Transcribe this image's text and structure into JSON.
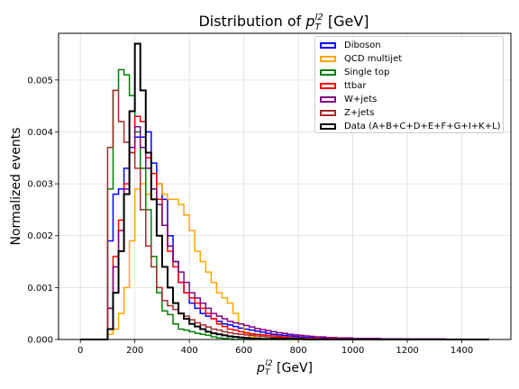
{
  "chart_data": {
    "type": "step-histogram",
    "title": "Distribution of p_T^l2 [GeV]",
    "title_parts": {
      "prefix": "Distribution of ",
      "var": "p",
      "sub": "T",
      "sup": "l2",
      "suffix": " [GeV]"
    },
    "xlabel": "p_T^l2 [GeV]",
    "xlabel_parts": {
      "var": "p",
      "sub": "T",
      "sup": "l2",
      "suffix": " [GeV]"
    },
    "ylabel": "Normalized events",
    "xlim": [
      -80,
      1580
    ],
    "ylim": [
      0,
      0.0059
    ],
    "x_ticks": [
      0,
      200,
      400,
      600,
      800,
      1000,
      1200,
      1400
    ],
    "x_tick_labels": [
      "0",
      "200",
      "400",
      "600",
      "800",
      "1000",
      "1200",
      "1400"
    ],
    "y_ticks": [
      0,
      0.001,
      0.002,
      0.003,
      0.004,
      0.005
    ],
    "y_tick_labels": [
      "0.000",
      "0.001",
      "0.002",
      "0.003",
      "0.004",
      "0.005"
    ],
    "grid": true,
    "legend_position": "top-right",
    "bin_edges": [
      0,
      20,
      40,
      60,
      80,
      100,
      120,
      140,
      160,
      180,
      200,
      220,
      240,
      260,
      280,
      300,
      320,
      340,
      360,
      380,
      400,
      420,
      440,
      460,
      480,
      500,
      520,
      540,
      560,
      580,
      600,
      620,
      640,
      660,
      680,
      700,
      720,
      740,
      760,
      780,
      800,
      820,
      840,
      860,
      880,
      900,
      920,
      940,
      960,
      980,
      1000,
      1020,
      1040,
      1060,
      1080,
      1100,
      1120,
      1140,
      1160,
      1180,
      1200,
      1220,
      1240,
      1260,
      1280,
      1300,
      1320,
      1340,
      1360,
      1380,
      1400,
      1420,
      1440,
      1460,
      1480,
      1500
    ],
    "series": [
      {
        "name": "Diboson",
        "color": "#0000ff",
        "values": [
          0,
          0,
          0,
          0,
          0,
          0.0019,
          0.0028,
          0.0029,
          0.0033,
          0.0037,
          0.0039,
          0.0039,
          0.004,
          0.0034,
          0.003,
          0.0027,
          0.002,
          0.0015,
          0.0011,
          0.0009,
          0.0007,
          0.0006,
          0.0005,
          0.00045,
          0.0004,
          0.00035,
          0.0003,
          0.00028,
          0.00025,
          0.00022,
          0.0002,
          0.00018,
          0.00016,
          0.00014,
          0.00012,
          0.0001,
          9e-05,
          8e-05,
          7e-05,
          6e-05,
          5e-05,
          4e-05,
          4e-05,
          3e-05,
          3e-05,
          2e-05,
          2e-05,
          2e-05,
          2e-05,
          1e-05,
          1e-05,
          1e-05,
          1e-05,
          1e-05,
          1e-05,
          1e-05,
          1e-05,
          1e-05,
          1e-05,
          0,
          0,
          0,
          0,
          0,
          0,
          0,
          0,
          0,
          0,
          0,
          0,
          0,
          0,
          0,
          0
        ]
      },
      {
        "name": "QCD multijet",
        "color": "#ffa500",
        "values": [
          0,
          0,
          0,
          0,
          0,
          0.0001,
          0.0002,
          0.0005,
          0.001,
          0.0019,
          0.0029,
          0.003,
          0.0028,
          0.0029,
          0.003,
          0.0028,
          0.0027,
          0.0027,
          0.0026,
          0.0024,
          0.0021,
          0.0017,
          0.0015,
          0.0013,
          0.0011,
          0.0009,
          0.0008,
          0.0007,
          0.0005,
          0.0003,
          0.0001,
          5e-05,
          3e-05,
          2e-05,
          1e-05,
          0,
          0,
          0,
          0,
          0,
          0,
          0,
          0,
          0,
          0,
          0,
          0,
          0,
          0,
          0,
          0,
          0,
          0,
          0,
          0,
          0,
          0,
          0,
          0,
          0,
          0,
          0,
          0,
          0,
          0,
          0,
          0,
          0,
          0,
          0,
          0,
          0,
          0,
          0,
          0
        ]
      },
      {
        "name": "Single top",
        "color": "#008000",
        "values": [
          0,
          0,
          0,
          0,
          0,
          0.0029,
          0.0048,
          0.0052,
          0.0051,
          0.0047,
          0.004,
          0.0033,
          0.0025,
          0.0016,
          0.0009,
          0.00055,
          0.00048,
          0.0003,
          0.0002,
          0.00018,
          0.00015,
          0.00012,
          0.0001,
          8e-05,
          5e-05,
          3e-05,
          2e-05,
          1e-05,
          0,
          0,
          0,
          0,
          0,
          0,
          0,
          0,
          0,
          0,
          0,
          0,
          0,
          0,
          0,
          0,
          0,
          0,
          0,
          0,
          0,
          0,
          0,
          0,
          0,
          0,
          0,
          0,
          0,
          0,
          0,
          0,
          0,
          0,
          0,
          0,
          0,
          0,
          0,
          0,
          0,
          0,
          0,
          0,
          0,
          0,
          0
        ]
      },
      {
        "name": "ttbar",
        "color": "#ff0000",
        "values": [
          0,
          0,
          0,
          0,
          0,
          0.0006,
          0.0016,
          0.0023,
          0.003,
          0.0036,
          0.0043,
          0.0042,
          0.0035,
          0.0032,
          0.0027,
          0.0022,
          0.0017,
          0.0014,
          0.0011,
          0.0009,
          0.0008,
          0.0007,
          0.0006,
          0.0005,
          0.0004,
          0.0003,
          0.00025,
          0.0002,
          0.00018,
          0.00015,
          0.00013,
          0.00011,
          0.0001,
          9e-05,
          8e-05,
          7e-05,
          6e-05,
          5e-05,
          4e-05,
          3e-05,
          3e-05,
          2e-05,
          2e-05,
          2e-05,
          1e-05,
          1e-05,
          1e-05,
          1e-05,
          1e-05,
          1e-05,
          1e-05,
          0,
          0,
          0,
          0,
          0,
          0,
          0,
          0,
          0,
          0,
          0,
          0,
          0,
          0,
          0,
          0,
          0,
          0,
          0,
          0,
          0,
          0,
          0,
          0
        ]
      },
      {
        "name": "W+jets",
        "color": "#800080",
        "values": [
          0,
          0,
          0,
          0,
          0,
          0.0006,
          0.0014,
          0.0021,
          0.0029,
          0.0037,
          0.0041,
          0.0037,
          0.0033,
          0.0029,
          0.0026,
          0.0022,
          0.0018,
          0.0015,
          0.0013,
          0.0011,
          0.0009,
          0.0008,
          0.0007,
          0.0006,
          0.0005,
          0.00045,
          0.0004,
          0.00035,
          0.00032,
          0.0003,
          0.00027,
          0.00024,
          0.00021,
          0.00019,
          0.00017,
          0.00015,
          0.00013,
          0.00012,
          0.0001,
          9e-05,
          8e-05,
          7e-05,
          6e-05,
          5e-05,
          5e-05,
          4e-05,
          4e-05,
          3e-05,
          3e-05,
          3e-05,
          2e-05,
          2e-05,
          2e-05,
          2e-05,
          2e-05,
          1e-05,
          1e-05,
          1e-05,
          1e-05,
          1e-05,
          1e-05,
          1e-05,
          1e-05,
          1e-05,
          1e-05,
          1e-05,
          1e-05,
          0,
          0,
          0,
          0,
          0,
          0,
          0,
          0
        ]
      },
      {
        "name": "Z+jets",
        "color": "#a52a2a",
        "values": [
          0,
          0,
          0,
          0,
          0,
          0.0037,
          0.0048,
          0.0042,
          0.0038,
          0.0036,
          0.0033,
          0.0025,
          0.0018,
          0.0014,
          0.001,
          0.00075,
          0.00065,
          0.00058,
          0.0005,
          0.00045,
          0.00038,
          0.00032,
          0.00028,
          0.00024,
          0.0002,
          0.00018,
          0.00015,
          0.00013,
          0.00011,
          0.0001,
          9e-05,
          8e-05,
          7e-05,
          6e-05,
          5e-05,
          4e-05,
          4e-05,
          3e-05,
          3e-05,
          2e-05,
          2e-05,
          2e-05,
          1e-05,
          1e-05,
          1e-05,
          1e-05,
          1e-05,
          1e-05,
          0,
          0,
          0,
          0,
          0,
          0,
          0,
          0,
          0,
          0,
          0,
          0,
          0,
          0,
          0,
          0,
          0,
          0,
          0,
          0,
          0,
          0,
          0,
          0,
          0,
          0,
          0
        ]
      },
      {
        "name": "Data (A+B+C+D+E+F+G+I+K+L)",
        "color": "#000000",
        "values": [
          0,
          0,
          0,
          0,
          0,
          0.0002,
          0.0009,
          0.0017,
          0.0028,
          0.0044,
          0.0057,
          0.0048,
          0.0036,
          0.0027,
          0.002,
          0.0014,
          0.001,
          0.0007,
          0.0005,
          0.0004,
          0.0003,
          0.00025,
          0.0002,
          0.00015,
          0.00012,
          0.0001,
          8e-05,
          6e-05,
          5e-05,
          4e-05,
          3e-05,
          2e-05,
          2e-05,
          1e-05,
          1e-05,
          1e-05,
          1e-05,
          1e-05,
          1e-05,
          1e-05,
          1e-05,
          0,
          0,
          0,
          0,
          0,
          0,
          0,
          0,
          0,
          0,
          0,
          0,
          0,
          0,
          0,
          0,
          0,
          0,
          0,
          0,
          0,
          0,
          0,
          0,
          0,
          0,
          0,
          0,
          0,
          0,
          0,
          0,
          0,
          0
        ]
      }
    ]
  }
}
